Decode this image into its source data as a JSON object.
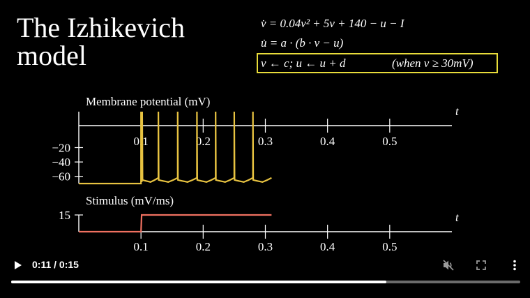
{
  "slide": {
    "title_line1": "The Izhikevich",
    "title_line2": "model",
    "eq1": "v̇ = 0.04v² + 5v + 140 − u − I",
    "eq2": "u̇ = a · (b · v − u)",
    "eq3_reset": "v ← c;   u ← u + d",
    "eq3_condition": "(when v ≥ 30mV)",
    "highlight_color": "#e8dc3a"
  },
  "chart_data": [
    {
      "type": "line",
      "title": "Membrane potential (mV)",
      "xlabel": "t",
      "ylabel": "",
      "x_ticks": [
        0.1,
        0.2,
        0.3,
        0.4,
        0.5
      ],
      "x_tick_labels": [
        "0.1",
        "0.2",
        "0.3",
        "0.4",
        "0.5"
      ],
      "y_ticks": [
        -20,
        -40,
        -60
      ],
      "y_tick_labels": [
        "−20",
        "−40",
        "−60"
      ],
      "xlim": [
        0,
        0.6
      ],
      "ylim": [
        -70,
        30
      ],
      "color": "#e8c341",
      "spike_times": [
        0.1,
        0.102,
        0.128,
        0.159,
        0.19,
        0.22,
        0.25,
        0.28
      ],
      "resting_value": -70,
      "reset_value": -65,
      "peak_value": 30,
      "end_time": 0.31
    },
    {
      "type": "line",
      "title": "Stimulus (mV/ms)",
      "xlabel": "t",
      "ylabel": "",
      "x_ticks": [
        0.1,
        0.2,
        0.3,
        0.4,
        0.5
      ],
      "x_tick_labels": [
        "0.1",
        "0.2",
        "0.3",
        "0.4",
        "0.5"
      ],
      "y_ticks": [
        15
      ],
      "y_tick_labels": [
        "15"
      ],
      "xlim": [
        0,
        0.6
      ],
      "ylim": [
        0,
        15
      ],
      "color": "#f07060",
      "x": [
        0,
        0.1,
        0.101,
        0.31
      ],
      "y": [
        0,
        0,
        15,
        15
      ]
    }
  ],
  "player": {
    "time_display": "0:11 / 0:15",
    "progress_fraction": 0.737,
    "icons": [
      "play-icon",
      "mute-icon",
      "fullscreen-icon",
      "more-options-icon"
    ]
  }
}
